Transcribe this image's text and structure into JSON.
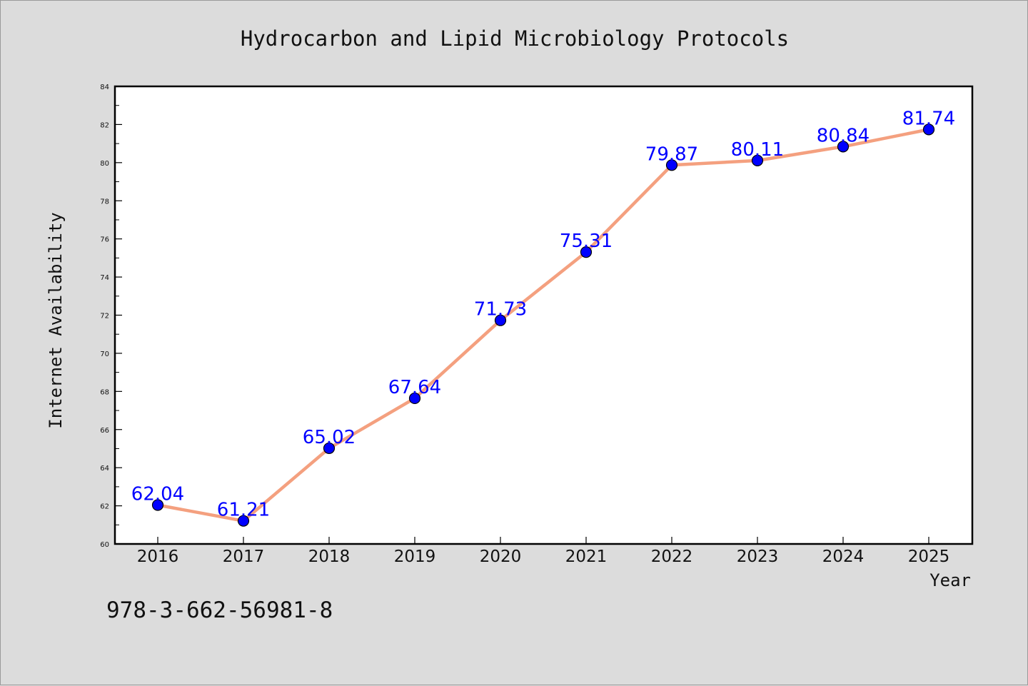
{
  "chart_data": {
    "type": "line",
    "title": "Hydrocarbon and Lipid Microbiology Protocols",
    "xlabel": "Year",
    "ylabel": "Internet Availability",
    "x": [
      "2016",
      "2017",
      "2018",
      "2019",
      "2020",
      "2021",
      "2022",
      "2023",
      "2024",
      "2025"
    ],
    "series": [
      {
        "values": [
          62.04,
          61.21,
          65.02,
          67.64,
          71.73,
          75.31,
          79.87,
          80.11,
          80.84,
          81.74
        ],
        "labels": [
          "62.04",
          "61.21",
          "65.02",
          "67.64",
          "71.73",
          "75.31",
          "79.87",
          "80.11",
          "80.84",
          "81.74"
        ],
        "line_color": "#f4a07f",
        "marker_color": "#0000ff"
      }
    ],
    "ylim": [
      60,
      84
    ],
    "yticks": [
      "60",
      "62",
      "64",
      "66",
      "68",
      "70",
      "72",
      "74",
      "76",
      "78",
      "80",
      "82",
      "84"
    ],
    "grid": false,
    "legend": "none"
  },
  "footer": {
    "isbn": "978-3-662-56981-8"
  }
}
